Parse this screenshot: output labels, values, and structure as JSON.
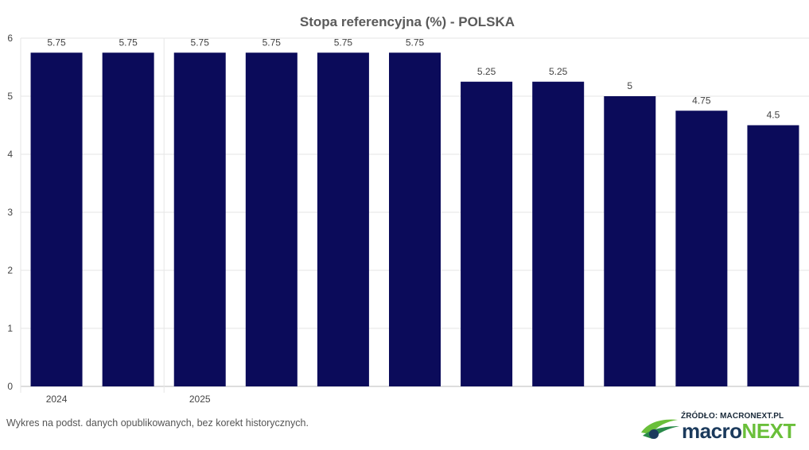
{
  "chart_data": {
    "type": "bar",
    "title": "Stopa referencyjna (%) - POLSKA",
    "xlabel": "",
    "ylabel": "",
    "categories": [
      "2024",
      "",
      "2025",
      "",
      "",
      "",
      "",
      "",
      "",
      "",
      ""
    ],
    "values": [
      5.75,
      5.75,
      5.75,
      5.75,
      5.75,
      5.75,
      5.25,
      5.25,
      5,
      4.75,
      4.5
    ],
    "data_labels": [
      "5.75",
      "5.75",
      "5.75",
      "5.75",
      "5.75",
      "5.75",
      "5.25",
      "5.25",
      "5",
      "4.75",
      "4.5"
    ],
    "yticks": [
      "0",
      "1",
      "2",
      "3",
      "4",
      "5",
      "6"
    ],
    "ylim": [
      0,
      6
    ],
    "grid": true,
    "legend": "none",
    "bar_color": "#0b0b5a"
  },
  "footnote": "Wykres na podst. danych opublikowanych, bez korekt historycznych.",
  "branding": {
    "source": "ŹRÓDŁO: MACRONEXT.PL",
    "name_part1": "macro",
    "name_part2": "NEXT",
    "logo_icon": "macronext-swoosh-icon",
    "colors": {
      "dark": "#1b3a5c",
      "green": "#6abf3a"
    }
  }
}
